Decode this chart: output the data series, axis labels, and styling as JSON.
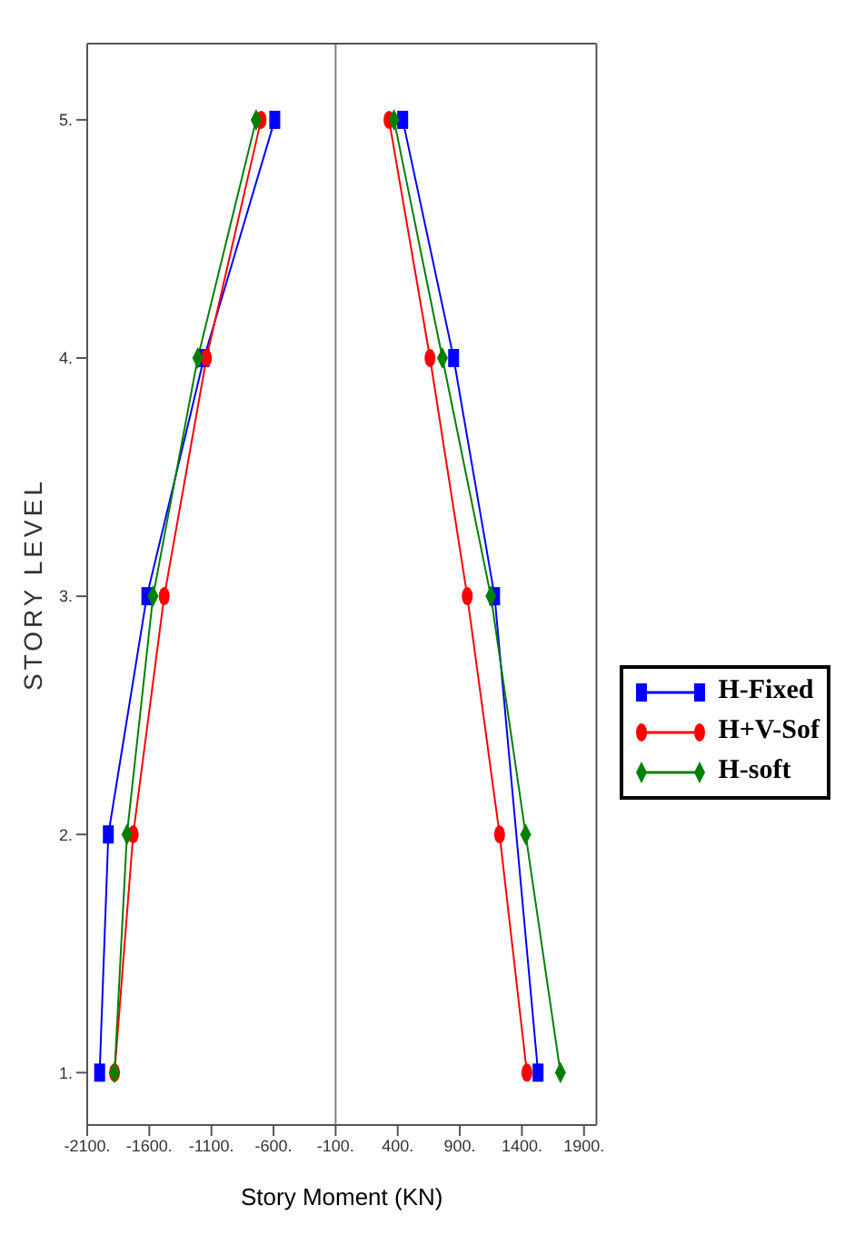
{
  "chart_data": {
    "type": "line",
    "xlabel": "Story Moment (KN)",
    "ylabel": "STORY LEVEL",
    "xlim": [
      -2100,
      2000
    ],
    "ylim": [
      0.78,
      5.32
    ],
    "xticks": [
      {
        "value": -2100,
        "label": "-2100."
      },
      {
        "value": -1600,
        "label": "-1600."
      },
      {
        "value": -1100,
        "label": "-1100."
      },
      {
        "value": -600,
        "label": "-600."
      },
      {
        "value": -100,
        "label": "-100."
      },
      {
        "value": 400,
        "label": "400."
      },
      {
        "value": 900,
        "label": "900."
      },
      {
        "value": 1400,
        "label": "1400."
      },
      {
        "value": 1900,
        "label": "1900."
      }
    ],
    "yticks": [
      {
        "value": 1,
        "label": "1."
      },
      {
        "value": 2,
        "label": "2."
      },
      {
        "value": 3,
        "label": "3."
      },
      {
        "value": 4,
        "label": "4."
      },
      {
        "value": 5,
        "label": "5."
      }
    ],
    "grid": false,
    "legend": "right",
    "line_style": "solid",
    "ref_lines": [
      {
        "axis": "x",
        "value": -100,
        "color": "#808080"
      }
    ],
    "series": [
      {
        "name": "H-Fixed",
        "color": "#0000ff",
        "marker": "square",
        "x": [
          -2000,
          -1930,
          -1620,
          -1160,
          -590
        ],
        "values": [
          1,
          2,
          3,
          4,
          5
        ]
      },
      {
        "name": "H+V-Sof",
        "color": "#ff0000",
        "marker": "circle",
        "x": [
          -1880,
          -1730,
          -1480,
          -1140,
          -700
        ],
        "values": [
          1,
          2,
          3,
          4,
          5
        ]
      },
      {
        "name": "H-soft",
        "color": "#008000",
        "marker": "diamond",
        "x": [
          -1880,
          -1780,
          -1570,
          -1210,
          -740
        ],
        "values": [
          1,
          2,
          3,
          4,
          5
        ]
      },
      {
        "color": "#0000ff",
        "marker": "square",
        "x": [
          1530,
          1410,
          1180,
          850,
          440
        ],
        "values": [
          1,
          null,
          3,
          4,
          5
        ]
      },
      {
        "color": "#ff0000",
        "marker": "circle",
        "x": [
          1440,
          1220,
          960,
          660,
          330
        ],
        "values": [
          1,
          2,
          3,
          4,
          5
        ]
      },
      {
        "color": "#008000",
        "marker": "diamond",
        "x": [
          1710,
          1430,
          1150,
          760,
          370
        ],
        "values": [
          1,
          2,
          3,
          4,
          5
        ]
      }
    ]
  }
}
